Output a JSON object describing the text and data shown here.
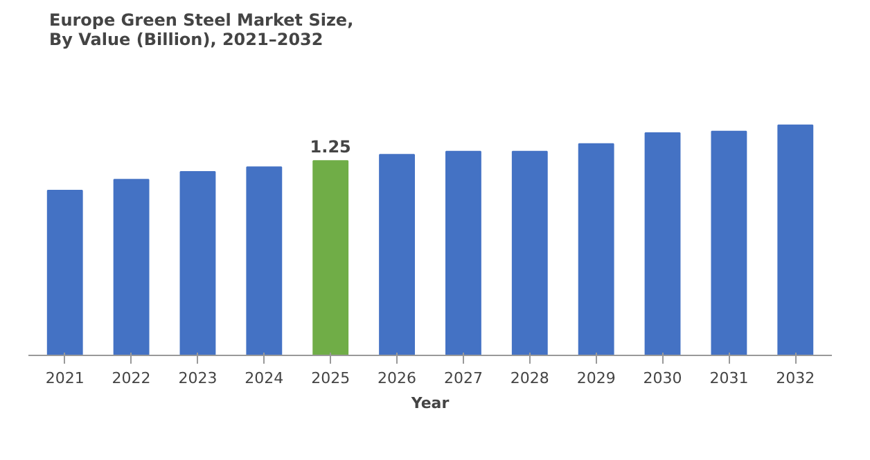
{
  "chart_data": {
    "type": "bar",
    "title": "Europe Green Steel Market Size,\nBy Value (Billion), 2021–2032",
    "xlabel": "Year",
    "categories": [
      "2021",
      "2022",
      "2023",
      "2024",
      "2025",
      "2026",
      "2027",
      "2028",
      "2029",
      "2030",
      "2031",
      "2032"
    ],
    "values": [
      1.06,
      1.13,
      1.18,
      1.21,
      1.25,
      1.29,
      1.31,
      1.31,
      1.36,
      1.43,
      1.44,
      1.48
    ],
    "colors": [
      "#4472c4",
      "#4472c4",
      "#4472c4",
      "#4472c4",
      "#70ad47",
      "#4472c4",
      "#4472c4",
      "#4472c4",
      "#4472c4",
      "#4472c4",
      "#4472c4",
      "#4472c4"
    ],
    "value_labels": [
      null,
      null,
      null,
      null,
      "1.25",
      null,
      null,
      null,
      null,
      null,
      null,
      null
    ],
    "tick_labels": "x",
    "grid": false
  }
}
